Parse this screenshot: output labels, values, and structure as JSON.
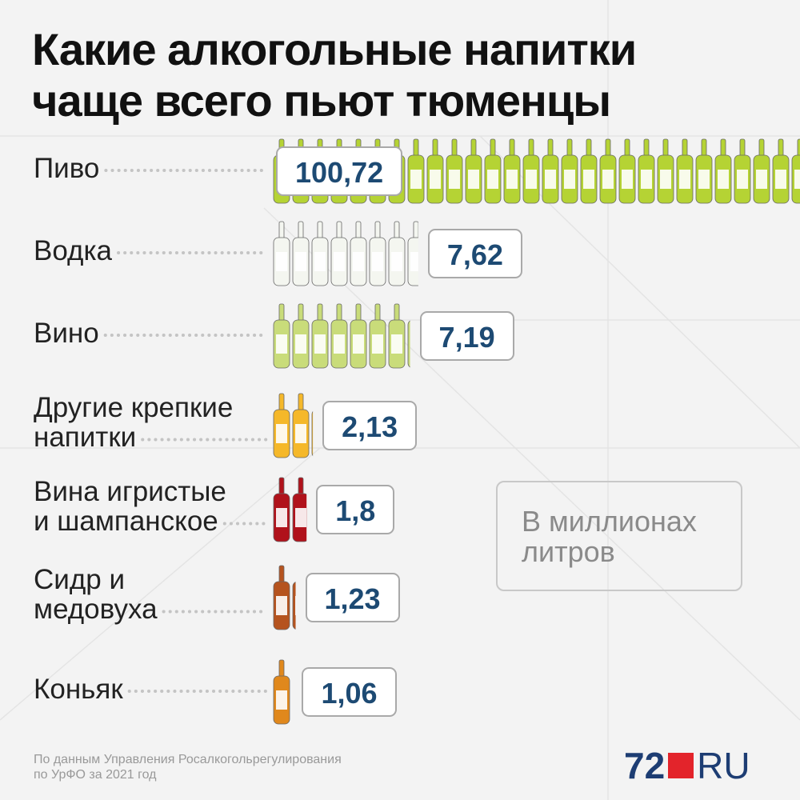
{
  "chart_data": {
    "type": "pictogram",
    "title": "Какие алкогольные напитки\nчаще всего пьют тюменцы",
    "categories": [
      "Пиво",
      "Водка",
      "Вино",
      "Другие крепкие\nнапитки",
      "Вина игристые\nи шампанское",
      "Сидр и\nмедовуха",
      "Коньяк"
    ],
    "values": [
      100.72,
      7.62,
      7.19,
      2.13,
      1.8,
      1.23,
      1.06
    ],
    "value_labels": [
      "100,72",
      "7,62",
      "7,19",
      "2,13",
      "1,8",
      "1,23",
      "1,06"
    ],
    "colors": [
      "#b5d334",
      "#f4f6f0",
      "#c9dc7a",
      "#f5b82a",
      "#b0121b",
      "#b5531e",
      "#e0881c"
    ],
    "unit_note": "В миллионах литров",
    "source": "По данным Управления Росалкогольрегулирования\nпо УрФО за 2021 год",
    "logo_left": "72",
    "logo_right": "RU"
  }
}
